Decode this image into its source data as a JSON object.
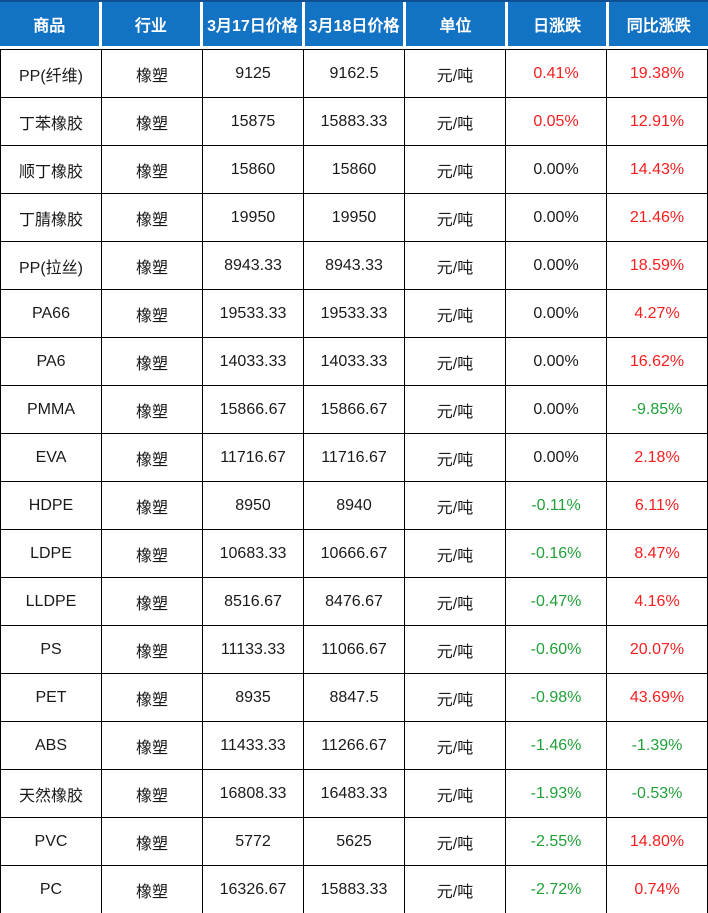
{
  "palette": {
    "header_bg": "#1273c4",
    "header_text": "#ffffff",
    "header_top_border": "#0f4f94",
    "text": "#1a1a1a",
    "up_red": "#f81e1e",
    "down_green": "#21a038",
    "border": "#000000"
  },
  "chart_data": {
    "type": "table",
    "columns": [
      {
        "key": "product",
        "label": "商品"
      },
      {
        "key": "industry",
        "label": "行业"
      },
      {
        "key": "price_0317",
        "label": "3月17日价格"
      },
      {
        "key": "price_0318",
        "label": "3月18日价格"
      },
      {
        "key": "unit",
        "label": "单位"
      },
      {
        "key": "daily_change",
        "label": "日涨跌"
      },
      {
        "key": "yoy_change",
        "label": "同比涨跌"
      }
    ],
    "rows": [
      {
        "product": "PP(纤维)",
        "industry": "橡塑",
        "price_0317": "9125",
        "price_0318": "9162.5",
        "unit": "元/吨",
        "daily_change": "0.41%",
        "daily_color": "red",
        "yoy_change": "19.38%",
        "yoy_color": "red"
      },
      {
        "product": "丁苯橡胶",
        "industry": "橡塑",
        "price_0317": "15875",
        "price_0318": "15883.33",
        "unit": "元/吨",
        "daily_change": "0.05%",
        "daily_color": "red",
        "yoy_change": "12.91%",
        "yoy_color": "red"
      },
      {
        "product": "顺丁橡胶",
        "industry": "橡塑",
        "price_0317": "15860",
        "price_0318": "15860",
        "unit": "元/吨",
        "daily_change": "0.00%",
        "daily_color": "black",
        "yoy_change": "14.43%",
        "yoy_color": "red"
      },
      {
        "product": "丁腈橡胶",
        "industry": "橡塑",
        "price_0317": "19950",
        "price_0318": "19950",
        "unit": "元/吨",
        "daily_change": "0.00%",
        "daily_color": "black",
        "yoy_change": "21.46%",
        "yoy_color": "red"
      },
      {
        "product": "PP(拉丝)",
        "industry": "橡塑",
        "price_0317": "8943.33",
        "price_0318": "8943.33",
        "unit": "元/吨",
        "daily_change": "0.00%",
        "daily_color": "black",
        "yoy_change": "18.59%",
        "yoy_color": "red"
      },
      {
        "product": "PA66",
        "industry": "橡塑",
        "price_0317": "19533.33",
        "price_0318": "19533.33",
        "unit": "元/吨",
        "daily_change": "0.00%",
        "daily_color": "black",
        "yoy_change": "4.27%",
        "yoy_color": "red"
      },
      {
        "product": "PA6",
        "industry": "橡塑",
        "price_0317": "14033.33",
        "price_0318": "14033.33",
        "unit": "元/吨",
        "daily_change": "0.00%",
        "daily_color": "black",
        "yoy_change": "16.62%",
        "yoy_color": "red"
      },
      {
        "product": "PMMA",
        "industry": "橡塑",
        "price_0317": "15866.67",
        "price_0318": "15866.67",
        "unit": "元/吨",
        "daily_change": "0.00%",
        "daily_color": "black",
        "yoy_change": "-9.85%",
        "yoy_color": "green"
      },
      {
        "product": "EVA",
        "industry": "橡塑",
        "price_0317": "11716.67",
        "price_0318": "11716.67",
        "unit": "元/吨",
        "daily_change": "0.00%",
        "daily_color": "black",
        "yoy_change": "2.18%",
        "yoy_color": "red"
      },
      {
        "product": "HDPE",
        "industry": "橡塑",
        "price_0317": "8950",
        "price_0318": "8940",
        "unit": "元/吨",
        "daily_change": "-0.11%",
        "daily_color": "green",
        "yoy_change": "6.11%",
        "yoy_color": "red"
      },
      {
        "product": "LDPE",
        "industry": "橡塑",
        "price_0317": "10683.33",
        "price_0318": "10666.67",
        "unit": "元/吨",
        "daily_change": "-0.16%",
        "daily_color": "green",
        "yoy_change": "8.47%",
        "yoy_color": "red"
      },
      {
        "product": "LLDPE",
        "industry": "橡塑",
        "price_0317": "8516.67",
        "price_0318": "8476.67",
        "unit": "元/吨",
        "daily_change": "-0.47%",
        "daily_color": "green",
        "yoy_change": "4.16%",
        "yoy_color": "red"
      },
      {
        "product": "PS",
        "industry": "橡塑",
        "price_0317": "11133.33",
        "price_0318": "11066.67",
        "unit": "元/吨",
        "daily_change": "-0.60%",
        "daily_color": "green",
        "yoy_change": "20.07%",
        "yoy_color": "red"
      },
      {
        "product": "PET",
        "industry": "橡塑",
        "price_0317": "8935",
        "price_0318": "8847.5",
        "unit": "元/吨",
        "daily_change": "-0.98%",
        "daily_color": "green",
        "yoy_change": "43.69%",
        "yoy_color": "red"
      },
      {
        "product": "ABS",
        "industry": "橡塑",
        "price_0317": "11433.33",
        "price_0318": "11266.67",
        "unit": "元/吨",
        "daily_change": "-1.46%",
        "daily_color": "green",
        "yoy_change": "-1.39%",
        "yoy_color": "green"
      },
      {
        "product": "天然橡胶",
        "industry": "橡塑",
        "price_0317": "16808.33",
        "price_0318": "16483.33",
        "unit": "元/吨",
        "daily_change": "-1.93%",
        "daily_color": "green",
        "yoy_change": "-0.53%",
        "yoy_color": "green"
      },
      {
        "product": "PVC",
        "industry": "橡塑",
        "price_0317": "5772",
        "price_0318": "5625",
        "unit": "元/吨",
        "daily_change": "-2.55%",
        "daily_color": "green",
        "yoy_change": "14.80%",
        "yoy_color": "red"
      },
      {
        "product": "PC",
        "industry": "橡塑",
        "price_0317": "16326.67",
        "price_0318": "15883.33",
        "unit": "元/吨",
        "daily_change": "-2.72%",
        "daily_color": "green",
        "yoy_change": "0.74%",
        "yoy_color": "red"
      }
    ]
  }
}
